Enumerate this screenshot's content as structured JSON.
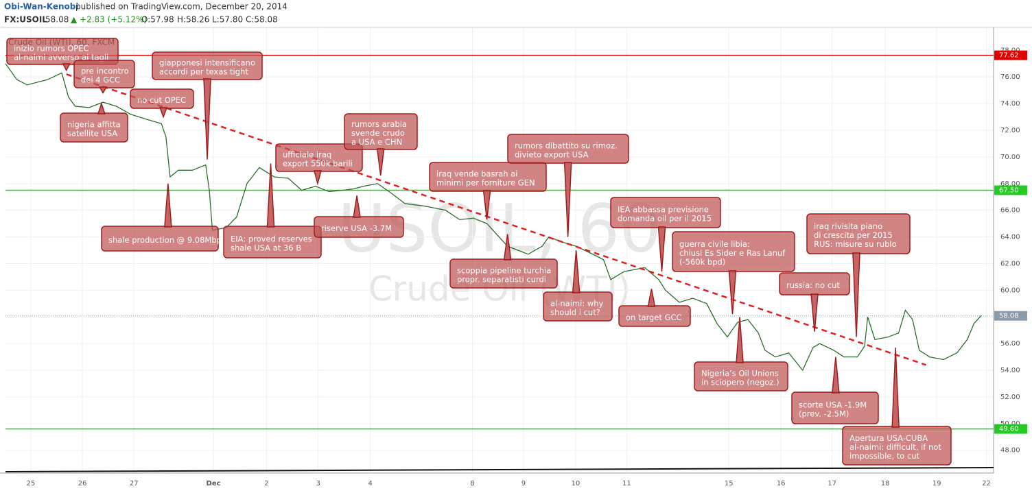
{
  "header": {
    "author": "Obi-Wan-Kenobi",
    "published": "published on TradingView.com, December 20, 2014",
    "symbol": "FX:USOIL",
    "last": "58.08",
    "change": "▲ +2.83 (+5.12%)",
    "open": "O:57.98",
    "high": "H:58.26",
    "low": "L:57.80",
    "close": "C:58.08"
  },
  "chart_data": {
    "type": "line",
    "title": "Crude Oil (WTI), 60, FXCM",
    "watermark": "USOIL, 60",
    "watermark_sub": "Crude Oil (WTI)",
    "x": [
      -0.49,
      -0.27,
      -0.07,
      0.33,
      0.6,
      0.73,
      0.86,
      1.13,
      1.4,
      1.66,
      1.93,
      2.26,
      2.53,
      2.62,
      2.7,
      2.86,
      3.13,
      3.39,
      3.46,
      3.52,
      3.79,
      3.99,
      4.19,
      4.43,
      4.72,
      4.99,
      5.25,
      5.52,
      5.78,
      6.05,
      6.25,
      6.45,
      6.72,
      6.98,
      7.25,
      7.65,
      8.04,
      8.31,
      8.58,
      8.84,
      9.24,
      9.64,
      9.91,
      10.04,
      10.31,
      10.57,
      10.84,
      11.1,
      11.24,
      11.5,
      11.9,
      12.17,
      12.3,
      12.57,
      12.83,
      13.1,
      13.3,
      13.5,
      13.7,
      13.9,
      14.1,
      14.23,
      14.43,
      14.69,
      14.96,
      15.16,
      15.29,
      15.56,
      15.76,
      16.02,
      16.16,
      16.22,
      16.36,
      16.62,
      16.82,
      16.95,
      17.09,
      17.22,
      17.42,
      17.69,
      17.95,
      18.15,
      18.28,
      18.42
    ],
    "series": [
      {
        "name": "FX:USOIL",
        "color": "#2a6e2a",
        "values": [
          77.0,
          75.8,
          75.4,
          75.8,
          76.3,
          74.5,
          73.8,
          73.7,
          74.1,
          73.8,
          73.2,
          72.8,
          72.5,
          71.5,
          68.5,
          69.0,
          69.0,
          69.4,
          67.5,
          64.5,
          64.7,
          65.5,
          68.0,
          69.2,
          68.5,
          68.4,
          67.5,
          67.8,
          67.4,
          67.5,
          67.6,
          67.8,
          68.0,
          67.3,
          66.5,
          66.3,
          66.0,
          65.3,
          65.4,
          65.0,
          63.3,
          62.7,
          63.3,
          64.0,
          63.6,
          63.3,
          62.8,
          62.3,
          60.8,
          61.4,
          61.7,
          60.8,
          60.0,
          59.1,
          59.4,
          59.0,
          57.5,
          56.5,
          57.6,
          57.8,
          56.8,
          55.5,
          55.0,
          55.3,
          54.0,
          55.7,
          56.0,
          55.5,
          55.0,
          55.0,
          55.8,
          58.0,
          56.3,
          56.5,
          56.8,
          58.5,
          57.8,
          55.5,
          55.0,
          54.8,
          55.3,
          56.3,
          57.5,
          58.1
        ]
      }
    ],
    "xlim": [
      -0.49,
      18.66
    ],
    "xticks": [
      {
        "value": 0,
        "label": "25"
      },
      {
        "value": 1,
        "label": "26"
      },
      {
        "value": 2,
        "label": "27"
      },
      {
        "value": 3.54,
        "label": "Dec"
      },
      {
        "value": 4.57,
        "label": "2"
      },
      {
        "value": 5.57,
        "label": "3"
      },
      {
        "value": 6.58,
        "label": "4"
      },
      {
        "value": 8.56,
        "label": "8"
      },
      {
        "value": 9.55,
        "label": "9"
      },
      {
        "value": 10.56,
        "label": "10"
      },
      {
        "value": 11.55,
        "label": "11"
      },
      {
        "value": 13.53,
        "label": "15"
      },
      {
        "value": 14.54,
        "label": "16"
      },
      {
        "value": 15.53,
        "label": "17"
      },
      {
        "value": 16.56,
        "label": "18"
      },
      {
        "value": 17.56,
        "label": "19"
      },
      {
        "value": 18.52,
        "label": "22"
      }
    ],
    "ylim": [
      46.29,
      79.71
    ],
    "yticks": [
      {
        "value": 48,
        "label": "48.00"
      },
      {
        "value": 50,
        "label": "50.00"
      },
      {
        "value": 52,
        "label": "52.00"
      },
      {
        "value": 54,
        "label": "54.00"
      },
      {
        "value": 56,
        "label": "56.00"
      },
      {
        "value": 58,
        "label": "58.00"
      },
      {
        "value": 60,
        "label": "60.00"
      },
      {
        "value": 62,
        "label": "62.00"
      },
      {
        "value": 64,
        "label": "64.00"
      },
      {
        "value": 66,
        "label": "66.00"
      },
      {
        "value": 68,
        "label": "68.00"
      },
      {
        "value": 70,
        "label": "70.00"
      },
      {
        "value": 72,
        "label": "72.00"
      },
      {
        "value": 74,
        "label": "74.00"
      },
      {
        "value": 76,
        "label": "76.00"
      },
      {
        "value": 78,
        "label": "78.00"
      }
    ],
    "grid": true,
    "levels": {
      "values": [
        77.62,
        67.5,
        49.6
      ],
      "value_labels": [
        "77.62",
        "67.50",
        "49.60"
      ],
      "colors": [
        "#e00000",
        "#22cc22",
        "#22cc22"
      ]
    },
    "last_price": {
      "value": 58.08,
      "label": "58.08",
      "color": "#8a9aa8"
    },
    "trendline": {
      "color": "#e02020",
      "x": [
        0.69,
        17.35
      ],
      "y": [
        76.2,
        54.4
      ]
    },
    "annotations": [
      {
        "lines": [
          "inizio rumors OPEC",
          "al-naimi avverso ai tagli"
        ],
        "x": 0.69,
        "y": 76.5
      },
      {
        "lines": [
          "pre incontro",
          "dei 4 GCC"
        ],
        "x": 1.4,
        "y": 74.8
      },
      {
        "lines": [
          "giapponesi intensificano",
          "accordi per texas tight"
        ],
        "x": 3.42,
        "y": 69.8
      },
      {
        "lines": [
          "no cut OPEC"
        ],
        "x": 2.57,
        "y": 73.0
      },
      {
        "lines": [
          "nigeria affitta",
          "satellite USA"
        ],
        "x": 1.37,
        "y": 74.0
      },
      {
        "lines": [
          "shale production @ 9.08Mbpd"
        ],
        "x": 2.66,
        "y": 68.0
      },
      {
        "lines": [
          "EIA: proved reserves",
          "shale USA at 36 B"
        ],
        "x": 4.65,
        "y": 69.5
      },
      {
        "lines": [
          "ufficiale iraq",
          "export 550k barili"
        ],
        "x": 5.56,
        "y": 68.0
      },
      {
        "lines": [
          "riserve USA -3.7M"
        ],
        "x": 6.32,
        "y": 67.1
      },
      {
        "lines": [
          "rumors arabia",
          "svende crudo",
          "a USA e CHN"
        ],
        "x": 6.78,
        "y": 68.6
      },
      {
        "lines": [
          "iraq vende basrah ai",
          "minimi per forniture GEN"
        ],
        "x": 8.84,
        "y": 65.3
      },
      {
        "lines": [
          "rumors dibattito su rimoz.",
          "divieto export USA"
        ],
        "x": 10.41,
        "y": 64.0
      },
      {
        "lines": [
          "scoppia pipeline turchia",
          "propr. separatisti curdi"
        ],
        "x": 9.24,
        "y": 64.2
      },
      {
        "lines": [
          "al-naimi: why",
          "should i cut?"
        ],
        "x": 10.57,
        "y": 63.0
      },
      {
        "lines": [
          "IEA abbassa previsione",
          "domanda oil per il 2015"
        ],
        "x": 12.23,
        "y": 61.4
      },
      {
        "lines": [
          "on target GCC"
        ],
        "x": 12.03,
        "y": 60.1
      },
      {
        "lines": [
          "guerra civile libia:",
          "chiusi Es Sider e Ras Lanuf",
          "(-560k bpd)"
        ],
        "x": 13.6,
        "y": 58.2
      },
      {
        "lines": [
          "Nigeria’s Oil Unions",
          "in sciopero (negoz.)"
        ],
        "x": 13.74,
        "y": 58.0
      },
      {
        "lines": [
          "russia: no cut"
        ],
        "x": 15.19,
        "y": 56.9
      },
      {
        "lines": [
          "iraq rivisita piano",
          "di crescita per 2015",
          "RUS: misure su rublo"
        ],
        "x": 16.0,
        "y": 56.5
      },
      {
        "lines": [
          "scorte USA -1.9M",
          "(prev. -2.5M)"
        ],
        "x": 15.6,
        "y": 55.0
      },
      {
        "lines": [
          "Apertura USA-CUBA",
          "al-naimi: difficult, if not",
          "impossible, to cut"
        ],
        "x": 16.76,
        "y": 55.7
      }
    ]
  }
}
